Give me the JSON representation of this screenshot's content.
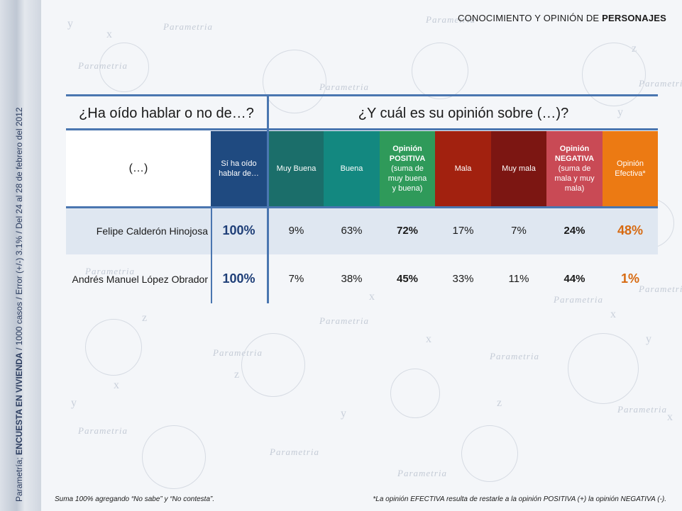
{
  "page_title": {
    "prefix": "CONOCIMIENTO Y OPINIÓN DE ",
    "strong": "PERSONAJES"
  },
  "side_note": {
    "part1": "Parametría; ",
    "strong": "ENCUESTA EN VIVIENDA",
    "part2": " / 1000 casos / Error (+/-) 3.1% / Del 24 al 28 de febrero del 2012"
  },
  "watermark": {
    "word": "Parametria",
    "symbols": [
      "x",
      "y",
      "z"
    ]
  },
  "table": {
    "question_left": "¿Ha oído hablar o no de…?",
    "question_right": "¿Y cuál es su opinión sobre (…)?",
    "blank_header": "(…)",
    "headers": [
      {
        "lines": [
          "Sí ha oído",
          "hablar de…"
        ],
        "strong": "",
        "color": "#1f4a80"
      },
      {
        "lines": [
          "Muy Buena"
        ],
        "strong": "",
        "color": "#1b6e6a"
      },
      {
        "lines": [
          "Buena"
        ],
        "strong": "",
        "color": "#138880"
      },
      {
        "lines": [
          "(suma de",
          "muy buena",
          "y buena)"
        ],
        "strong": "Opinión POSITIVA",
        "color": "#2f9a5a"
      },
      {
        "lines": [
          "Mala"
        ],
        "strong": "",
        "color": "#a2210f"
      },
      {
        "lines": [
          "Muy mala"
        ],
        "strong": "",
        "color": "#7c1612"
      },
      {
        "lines": [
          "(suma de",
          "mala y muy",
          "mala)"
        ],
        "strong": "Opinión NEGATIVA",
        "color": "#c94a55"
      },
      {
        "lines": [
          "Opinión",
          "Efectiva*"
        ],
        "strong": "",
        "color": "#ec7a13"
      }
    ],
    "rows": [
      {
        "name": "Felipe Calderón Hinojosa",
        "values": [
          "100%",
          "9%",
          "63%",
          "72%",
          "17%",
          "7%",
          "24%",
          "48%"
        ]
      },
      {
        "name": "Andrés Manuel López Obrador",
        "values": [
          "100%",
          "7%",
          "38%",
          "45%",
          "33%",
          "11%",
          "44%",
          "1%"
        ]
      }
    ]
  },
  "footnote_left": "Suma 100%  agregando “No sabe” y “No contesta”.",
  "footnote_right": "*La opinión EFECTIVA resulta de restarle a la opinión POSITIVA (+) la opinión NEGATIVA (-).",
  "colors": {
    "lines": "#4a76b0",
    "row_highlight": "#dfe7f1",
    "blue_value": "#1f3f78",
    "orange_value": "#d76a11"
  }
}
